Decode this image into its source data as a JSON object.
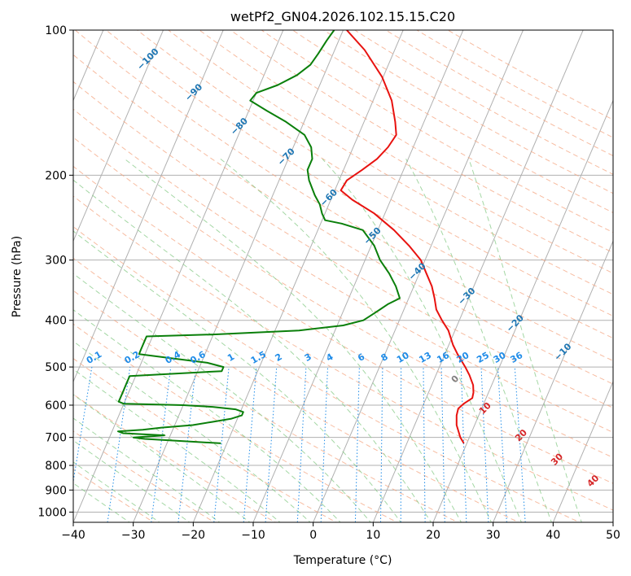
{
  "chart_data": {
    "type": "line",
    "chart_kind": "skew-T log-P sounding",
    "title": "wetPf2_GN04.2026.102.15.15.C20",
    "xlabel": "Temperature (°C)",
    "ylabel": "Pressure (hPa)",
    "xlim": [
      -40,
      50
    ],
    "ylim_hpa": [
      1050,
      100
    ],
    "y_scale": "log",
    "x_ticks": [
      "−40",
      "−30",
      "−20",
      "−10",
      "0",
      "10",
      "20",
      "30",
      "40",
      "50"
    ],
    "y_ticks": [
      "100",
      "200",
      "300",
      "400",
      "500",
      "600",
      "700",
      "800",
      "900",
      "1000"
    ],
    "grid": true,
    "series": [
      {
        "kind": "temperature",
        "color": "#e8120f",
        "p": [
          720,
          700,
          660,
          630,
          610,
          595,
          580,
          565,
          545,
          520,
          500,
          470,
          450,
          420,
          400,
          380,
          360,
          340,
          320,
          300,
          280,
          260,
          240,
          225,
          215,
          205,
          195,
          185,
          175,
          165,
          155,
          140,
          125,
          110,
          100
        ],
        "t": [
          19.5,
          18.5,
          17,
          16.3,
          16.1,
          16.7,
          17.7,
          17.5,
          16.9,
          15.6,
          14.3,
          12.1,
          10.7,
          8.9,
          7.1,
          5.4,
          4.3,
          3.0,
          1.2,
          -0.7,
          -3.7,
          -7.3,
          -11.8,
          -16.4,
          -19.0,
          -18.7,
          -16.9,
          -15.2,
          -14.2,
          -13.7,
          -14.8,
          -16.9,
          -20.2,
          -25.0,
          -29.4
        ]
      },
      {
        "kind": "dewpoint",
        "color": "#0a7f0a",
        "p": [
          720,
          712,
          705,
          700,
          693,
          686,
          680,
          675,
          668,
          660,
          650,
          640,
          630,
          620,
          612,
          605,
          600,
          596,
          590,
          580,
          560,
          540,
          522,
          510,
          500,
          490,
          480,
          470,
          460,
          450,
          440,
          432,
          428,
          420,
          410,
          400,
          390,
          380,
          370,
          360,
          340,
          320,
          300,
          280,
          260,
          252,
          248,
          240,
          230,
          220,
          205,
          195,
          185,
          175,
          165,
          155,
          147,
          140,
          135,
          130,
          124,
          118,
          112,
          105,
          100
        ],
        "t": [
          -21,
          -28,
          -34,
          -36,
          -31,
          -38,
          -39,
          -35,
          -32,
          -27,
          -24,
          -21,
          -19.5,
          -19.5,
          -21,
          -25,
          -30,
          -40,
          -41,
          -41,
          -41,
          -41,
          -41,
          -26,
          -26,
          -29,
          -35,
          -41,
          -41,
          -41,
          -41,
          -41,
          -30,
          -16,
          -9,
          -6,
          -5,
          -4,
          -3,
          -1.5,
          -3,
          -5,
          -7.5,
          -9.5,
          -12.5,
          -16.5,
          -19.5,
          -20.5,
          -21.5,
          -23,
          -25,
          -26,
          -26,
          -27,
          -29,
          -33,
          -37,
          -40.5,
          -40,
          -37,
          -34.5,
          -33,
          -32.5,
          -32,
          -31.5
        ]
      }
    ],
    "dry_adiabat_labels": [
      "−100",
      "−90",
      "−80",
      "−70",
      "−60",
      "−50",
      "−40",
      "−30",
      "−20",
      "−10"
    ],
    "mixing_ratio_labels": [
      "0.1",
      "0.2",
      "0.4",
      "0.6",
      "1",
      "1.5",
      "2",
      "3",
      "4",
      "6",
      "8",
      "10",
      "13",
      "16",
      "20",
      "25",
      "30",
      "36"
    ],
    "moist_adiabat_labels": [
      "0",
      "10",
      "20",
      "30",
      "40"
    ]
  }
}
